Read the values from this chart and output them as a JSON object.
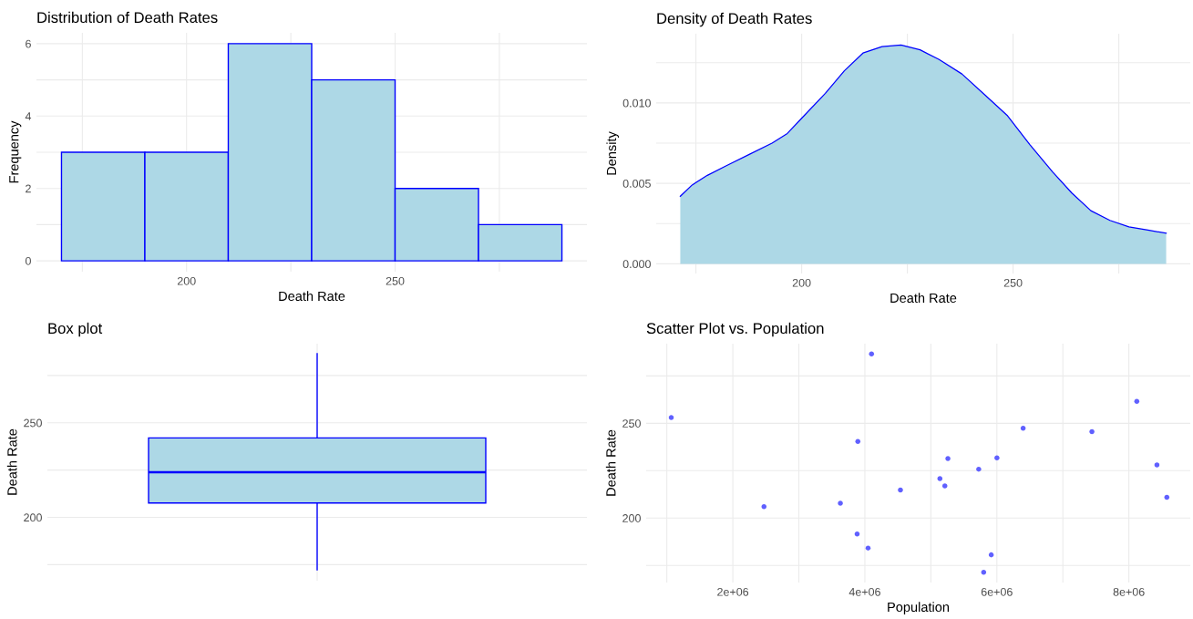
{
  "chart_data": [
    {
      "type": "histogram",
      "title": "Distribution of Death Rates",
      "xlabel": "Death Rate",
      "ylabel": "Frequency",
      "bins": [
        170,
        190,
        210,
        230,
        250,
        270,
        290
      ],
      "values": [
        3,
        3,
        6,
        5,
        2,
        1
      ],
      "color": "#add8e6",
      "xlim": [
        164,
        296
      ],
      "xticks": [
        {
          "value": 175,
          "label": null
        },
        200,
        {
          "value": 225,
          "label": null
        },
        250,
        {
          "value": 275,
          "label": null
        }
      ],
      "ylim": [
        -0.3,
        6.3
      ],
      "yticks": [
        0,
        {
          "value": 1,
          "label": null
        },
        2,
        {
          "value": 3,
          "label": null
        },
        4,
        {
          "value": 5,
          "label": null
        },
        6
      ],
      "grid": true
    },
    {
      "type": "area",
      "title": "Density of Death Rates",
      "xlabel": "Death Rate",
      "ylabel": "Density",
      "series": [
        {
          "color": "#add8e6",
          "x": [
            171.3,
            174.1,
            177.7,
            182.2,
            187.6,
            193.0,
            196.6,
            200.2,
            205.6,
            210.1,
            214.5,
            219.0,
            223.5,
            228.0,
            232.5,
            237.9,
            243.3,
            248.7,
            254.0,
            259.4,
            263.9,
            268.4,
            272.9,
            277.4,
            281.9,
            286.2
          ],
          "values": [
            0.0042,
            0.0049,
            0.0055,
            0.0061,
            0.0068,
            0.0075,
            0.0081,
            0.0091,
            0.0106,
            0.012,
            0.0131,
            0.0135,
            0.0136,
            0.0133,
            0.0127,
            0.0118,
            0.0105,
            0.0092,
            0.0074,
            0.0057,
            0.0044,
            0.0033,
            0.0027,
            0.0023,
            0.0021,
            0.0019
          ]
        }
      ],
      "xlim": [
        165.6,
        291.9
      ],
      "xticks": [
        {
          "value": 175,
          "label": null
        },
        200,
        {
          "value": 225,
          "label": null
        },
        250,
        {
          "value": 275,
          "label": null
        }
      ],
      "ylim": [
        -0.0006,
        0.0143
      ],
      "yticks": [
        {
          "value": 0,
          "label": "0.000"
        },
        {
          "value": 0.0025,
          "label": null
        },
        {
          "value": 0.005,
          "label": "0.005"
        },
        {
          "value": 0.0075,
          "label": null
        },
        {
          "value": 0.01,
          "label": "0.010"
        },
        {
          "value": 0.0125,
          "label": null
        }
      ],
      "grid": true
    },
    {
      "type": "box",
      "title": "Box plot",
      "ylabel": "Death Rate",
      "categories": [
        null
      ],
      "boxes": [
        {
          "low": 172.3,
          "q1": 207.6,
          "median": 223.9,
          "q3": 242.0,
          "high": 286.5
        }
      ],
      "color": "#add8e6",
      "ylim": [
        166.5,
        291.8
      ],
      "yticks": [
        {
          "value": 175,
          "label": null
        },
        200,
        {
          "value": 225,
          "label": null
        },
        250,
        {
          "value": 275,
          "label": null
        }
      ],
      "grid": true
    },
    {
      "type": "scatter",
      "title": "Scatter Plot vs. Population",
      "xlabel": "Population",
      "ylabel": "Death Rate",
      "series": [
        {
          "color": "#6060ff",
          "x": [
            1067000,
            2472000,
            3629000,
            3883000,
            3894000,
            4049000,
            4101000,
            4539000,
            5137000,
            5212000,
            5258000,
            5725000,
            5800000,
            5915000,
            6001000,
            6398000,
            7440000,
            8120000,
            8425000,
            8575000
          ],
          "values": [
            253.0,
            206.0,
            207.8,
            191.6,
            240.4,
            184.2,
            286.6,
            214.8,
            220.8,
            217.0,
            231.4,
            225.8,
            171.4,
            180.6,
            231.8,
            247.4,
            245.6,
            261.6,
            228.0,
            211.0
          ]
        }
      ],
      "marker": "circle",
      "xlim": [
        687000,
        8930000
      ],
      "xticks": [
        {
          "value": 1000000,
          "label": null
        },
        {
          "value": 2000000,
          "label": "2e+06"
        },
        {
          "value": 3000000,
          "label": null
        },
        {
          "value": 4000000,
          "label": "4e+06"
        },
        {
          "value": 5000000,
          "label": null
        },
        {
          "value": 6000000,
          "label": "6e+06"
        },
        {
          "value": 7000000,
          "label": null
        },
        {
          "value": 8000000,
          "label": "8e+06"
        }
      ],
      "ylim": [
        166,
        292
      ],
      "yticks": [
        {
          "value": 175,
          "label": null
        },
        200,
        {
          "value": 225,
          "label": null
        },
        250,
        {
          "value": 275,
          "label": null
        }
      ],
      "grid": true
    }
  ]
}
